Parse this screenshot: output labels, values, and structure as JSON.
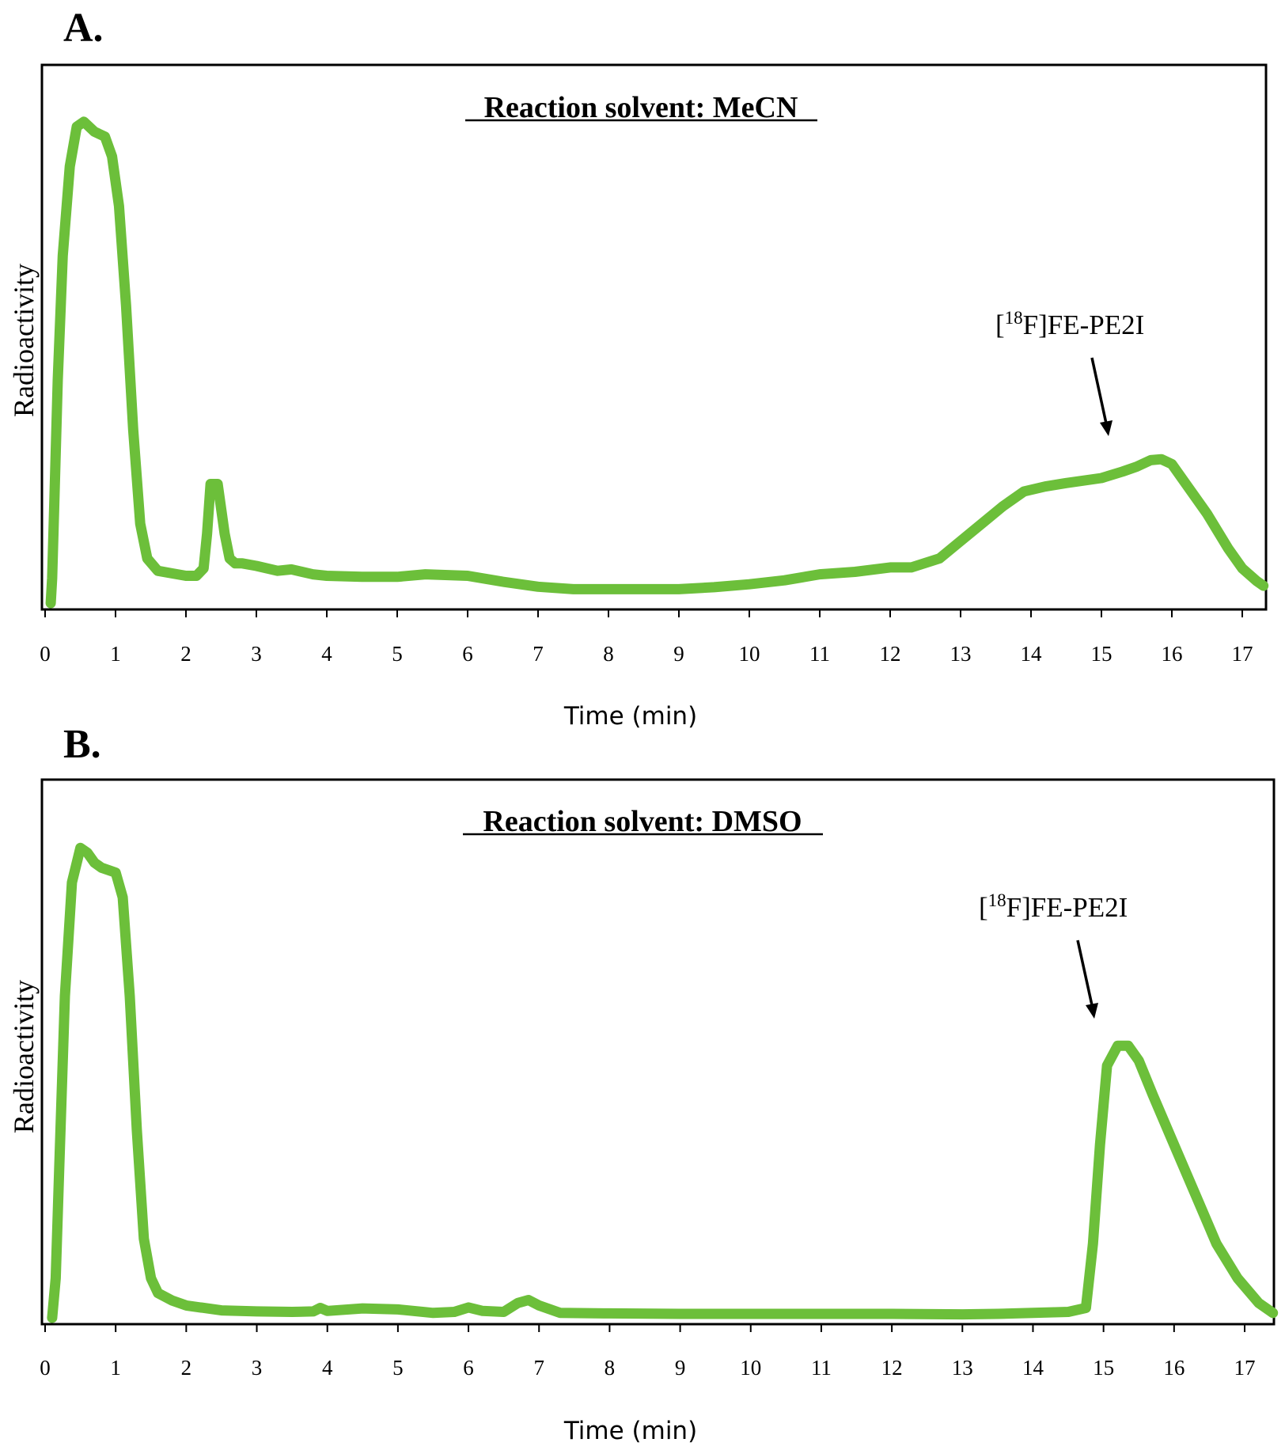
{
  "chart_data": [
    {
      "type": "line",
      "panel_label": "A.",
      "title": "Reaction solvent: MeCN",
      "xlabel": "Time (min)",
      "ylabel": "Radioactivity",
      "xlim": [
        0,
        17.4
      ],
      "ylim": [
        0,
        100
      ],
      "x_ticks": [
        0,
        1,
        2,
        3,
        4,
        5,
        6,
        7,
        8,
        9,
        10,
        11,
        12,
        13,
        14,
        15,
        16,
        17
      ],
      "grid": false,
      "line_color": "#6cbf3a",
      "annotation": {
        "prefix": "[",
        "superscript": "18",
        "suffix": "F]FE-PE2I",
        "x": 15.0,
        "y": 34
      },
      "series": [
        {
          "name": "Radioactivity",
          "x": [
            0.08,
            0.1,
            0.13,
            0.18,
            0.25,
            0.35,
            0.45,
            0.55,
            0.7,
            0.85,
            0.95,
            1.05,
            1.15,
            1.25,
            1.35,
            1.45,
            1.6,
            1.8,
            2.0,
            2.15,
            2.25,
            2.3,
            2.35,
            2.45,
            2.55,
            2.62,
            2.7,
            2.8,
            3.0,
            3.3,
            3.5,
            3.8,
            4.0,
            4.5,
            5.0,
            5.4,
            6.0,
            6.5,
            7.0,
            7.5,
            8.0,
            8.5,
            9.0,
            9.5,
            10.0,
            10.5,
            11.0,
            11.5,
            12.0,
            12.3,
            12.7,
            13.0,
            13.3,
            13.6,
            13.9,
            14.2,
            14.5,
            15.0,
            15.3,
            15.5,
            15.7,
            15.85,
            16.0,
            16.2,
            16.5,
            16.8,
            17.0,
            17.2,
            17.3
          ],
          "y": [
            0,
            5,
            20,
            45,
            70,
            88,
            96,
            97,
            95,
            94,
            90,
            80,
            60,
            35,
            16,
            9,
            6.5,
            6,
            5.5,
            5.5,
            7,
            14,
            24,
            24,
            14,
            9,
            8,
            8,
            7.5,
            6.5,
            6.8,
            5.8,
            5.5,
            5.3,
            5.3,
            5.8,
            5.5,
            4.3,
            3.3,
            2.8,
            2.8,
            2.8,
            2.8,
            3.2,
            3.8,
            4.6,
            5.8,
            6.3,
            7.2,
            7.2,
            9,
            12.5,
            16,
            19.5,
            22.5,
            23.5,
            24.2,
            25.2,
            26.5,
            27.5,
            28.8,
            29,
            28,
            24,
            18,
            11,
            7,
            4.5,
            3.5
          ]
        }
      ]
    },
    {
      "type": "line",
      "panel_label": "B.",
      "title": "Reaction solvent: DMSO",
      "xlabel": "Time (min)",
      "ylabel": "Radioactivity",
      "xlim": [
        0,
        17.4
      ],
      "ylim": [
        0,
        100
      ],
      "x_ticks": [
        0,
        1,
        2,
        3,
        4,
        5,
        6,
        7,
        8,
        9,
        10,
        11,
        12,
        13,
        14,
        15,
        16,
        17
      ],
      "grid": false,
      "line_color": "#6cbf3a",
      "annotation": {
        "prefix": "[",
        "superscript": "18",
        "suffix": "F]FE-PE2I",
        "x": 14.8,
        "y": 57
      },
      "series": [
        {
          "name": "Radioactivity",
          "x": [
            0.1,
            0.15,
            0.2,
            0.28,
            0.38,
            0.5,
            0.6,
            0.7,
            0.8,
            1.0,
            1.1,
            1.2,
            1.3,
            1.4,
            1.5,
            1.6,
            1.8,
            2.0,
            2.5,
            3.0,
            3.5,
            3.8,
            3.9,
            4.0,
            4.5,
            5.0,
            5.5,
            5.8,
            6.0,
            6.2,
            6.5,
            6.7,
            6.85,
            7.0,
            7.3,
            8.0,
            9.0,
            10.0,
            11.0,
            12.0,
            13.0,
            13.5,
            14.0,
            14.5,
            14.75,
            14.85,
            14.95,
            15.05,
            15.2,
            15.35,
            15.5,
            15.7,
            16.0,
            16.3,
            16.6,
            16.9,
            17.2,
            17.4
          ],
          "y": [
            0,
            8,
            30,
            65,
            88,
            95,
            94,
            92,
            91,
            90,
            85,
            65,
            38,
            16,
            8,
            5,
            3.5,
            2.5,
            1.5,
            1.3,
            1.2,
            1.3,
            2,
            1.4,
            1.9,
            1.7,
            1,
            1.2,
            2.1,
            1.4,
            1.2,
            3,
            3.6,
            2.5,
            1,
            0.9,
            0.8,
            0.8,
            0.8,
            0.8,
            0.7,
            0.8,
            1,
            1.2,
            2,
            15,
            35,
            51,
            55,
            55,
            52,
            45,
            35,
            25,
            15,
            8,
            3,
            1
          ]
        }
      ]
    }
  ]
}
